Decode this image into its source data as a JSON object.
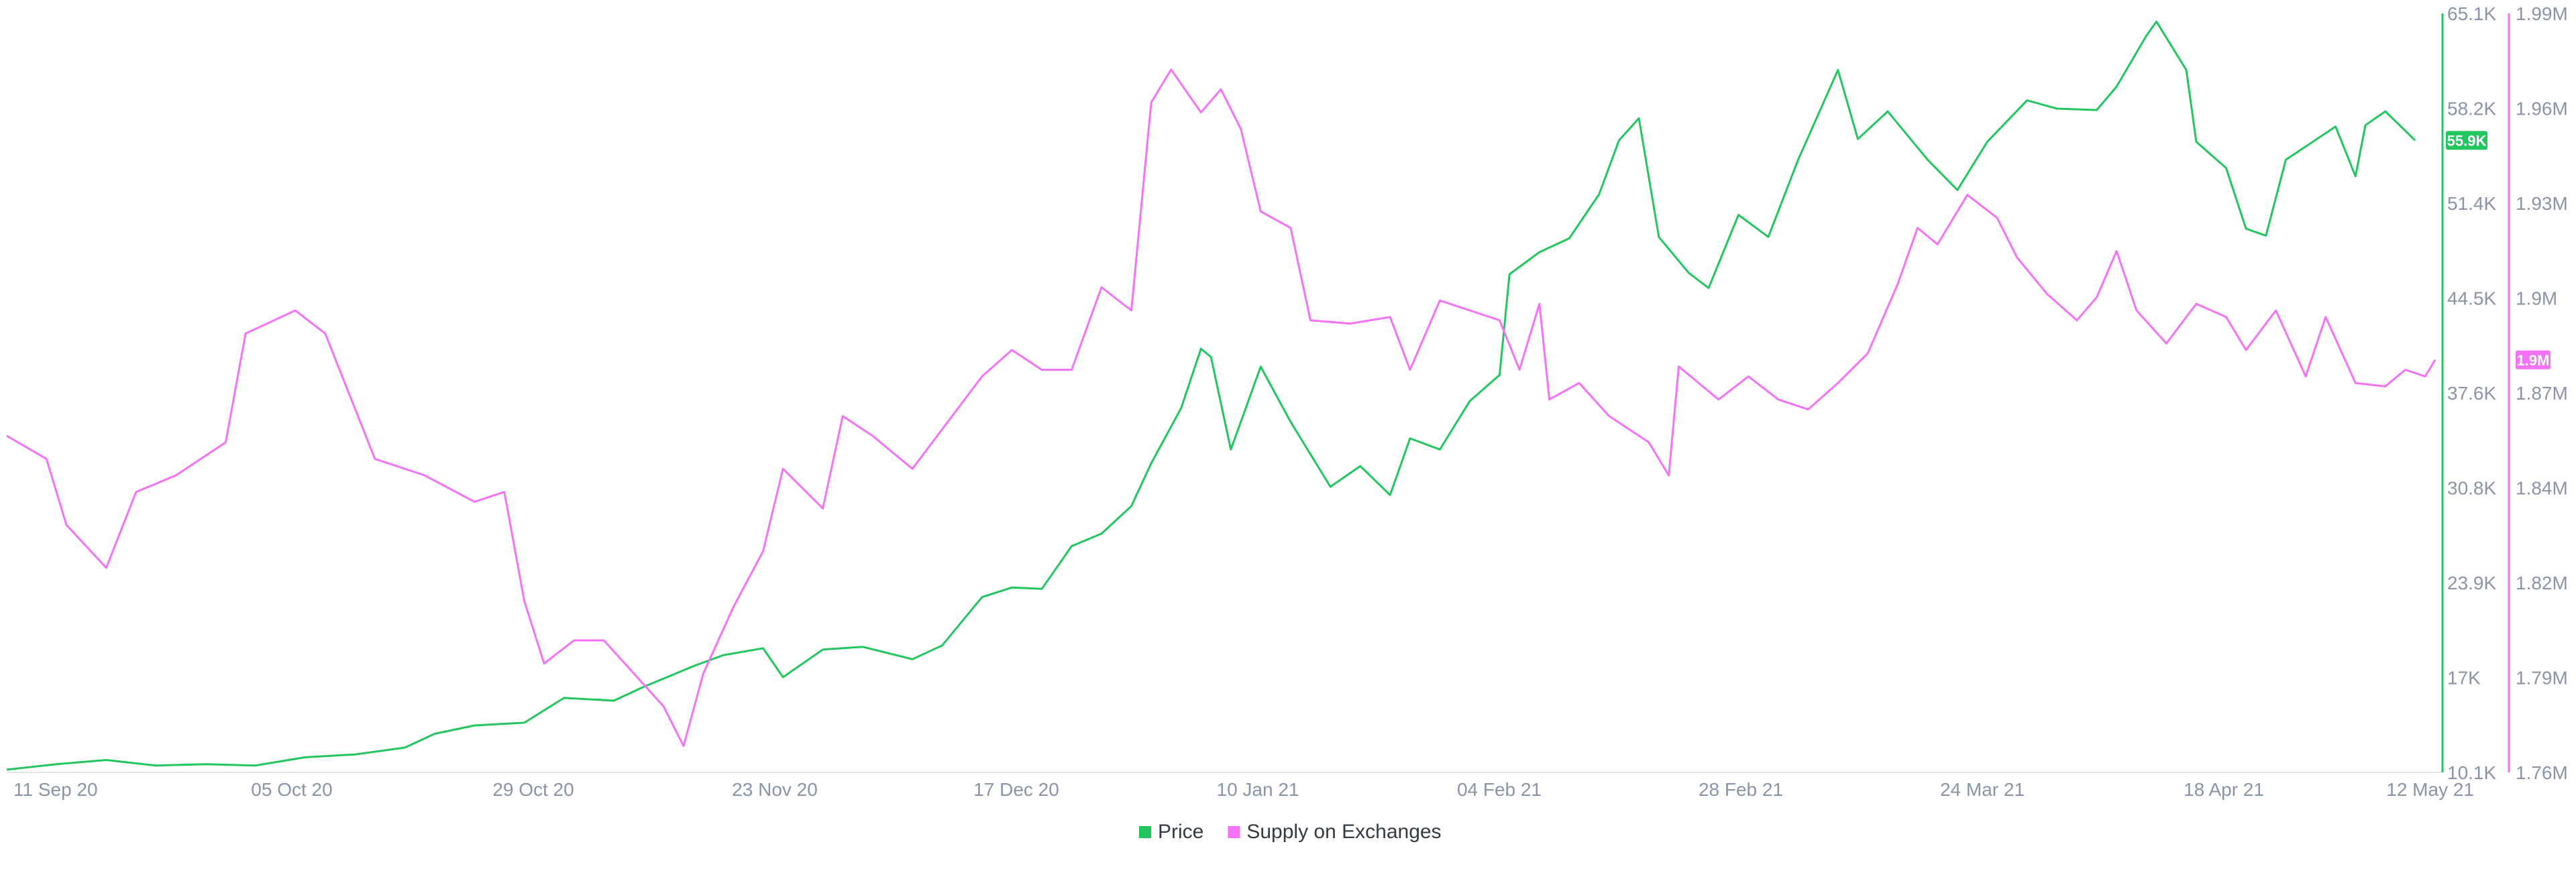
{
  "chart_data": {
    "type": "line",
    "x_dates": [
      "11 Sep 20",
      "05 Oct 20",
      "29 Oct 20",
      "23 Nov 20",
      "17 Dec 20",
      "10 Jan 21",
      "04 Feb 21",
      "28 Feb 21",
      "24 Mar 21",
      "18 Apr 21",
      "12 May 21"
    ],
    "x_start": "2020-09-10",
    "x_end": "2021-05-12",
    "y_left": {
      "ticks": [
        "10.1K",
        "17K",
        "23.9K",
        "30.8K",
        "37.6K",
        "44.5K",
        "51.4K",
        "58.2K",
        "65.1K"
      ],
      "range": [
        10100,
        65100
      ],
      "color": "#22c55e"
    },
    "y_right": {
      "ticks": [
        "1.76M",
        "1.79M",
        "1.82M",
        "1.84M",
        "1.87M",
        "1.9M",
        "1.93M",
        "1.96M",
        "1.99M"
      ],
      "range": [
        1760000,
        1990000
      ],
      "color": "#f472f6"
    },
    "series": [
      {
        "name": "Price",
        "axis": "left",
        "color": "#22c55e",
        "last_value_label": "55.9K",
        "points": [
          [
            "2020-09-10",
            10300
          ],
          [
            "2020-09-15",
            10700
          ],
          [
            "2020-09-20",
            11000
          ],
          [
            "2020-09-25",
            10600
          ],
          [
            "2020-09-30",
            10700
          ],
          [
            "2020-10-05",
            10600
          ],
          [
            "2020-10-10",
            11200
          ],
          [
            "2020-10-15",
            11400
          ],
          [
            "2020-10-20",
            11900
          ],
          [
            "2020-10-23",
            12900
          ],
          [
            "2020-10-27",
            13500
          ],
          [
            "2020-11-01",
            13700
          ],
          [
            "2020-11-05",
            15500
          ],
          [
            "2020-11-10",
            15300
          ],
          [
            "2020-11-13",
            16300
          ],
          [
            "2020-11-18",
            17800
          ],
          [
            "2020-11-21",
            18600
          ],
          [
            "2020-11-25",
            19100
          ],
          [
            "2020-11-27",
            17000
          ],
          [
            "2020-12-01",
            19000
          ],
          [
            "2020-12-05",
            19200
          ],
          [
            "2020-12-10",
            18300
          ],
          [
            "2020-12-13",
            19300
          ],
          [
            "2020-12-17",
            22800
          ],
          [
            "2020-12-20",
            23500
          ],
          [
            "2020-12-23",
            23400
          ],
          [
            "2020-12-26",
            26500
          ],
          [
            "2020-12-29",
            27400
          ],
          [
            "2021-01-01",
            29400
          ],
          [
            "2021-01-03",
            32500
          ],
          [
            "2021-01-06",
            36500
          ],
          [
            "2021-01-08",
            40800
          ],
          [
            "2021-01-09",
            40200
          ],
          [
            "2021-01-11",
            33500
          ],
          [
            "2021-01-14",
            39500
          ],
          [
            "2021-01-17",
            35500
          ],
          [
            "2021-01-21",
            30800
          ],
          [
            "2021-01-24",
            32300
          ],
          [
            "2021-01-27",
            30200
          ],
          [
            "2021-01-29",
            34300
          ],
          [
            "2021-02-01",
            33500
          ],
          [
            "2021-02-04",
            37000
          ],
          [
            "2021-02-07",
            38900
          ],
          [
            "2021-02-08",
            46200
          ],
          [
            "2021-02-11",
            47800
          ],
          [
            "2021-02-14",
            48800
          ],
          [
            "2021-02-17",
            52000
          ],
          [
            "2021-02-19",
            55900
          ],
          [
            "2021-02-21",
            57500
          ],
          [
            "2021-02-23",
            48900
          ],
          [
            "2021-02-26",
            46300
          ],
          [
            "2021-02-28",
            45200
          ],
          [
            "2021-03-03",
            50500
          ],
          [
            "2021-03-06",
            48900
          ],
          [
            "2021-03-09",
            54500
          ],
          [
            "2021-03-13",
            61000
          ],
          [
            "2021-03-15",
            56000
          ],
          [
            "2021-03-18",
            58000
          ],
          [
            "2021-03-22",
            54500
          ],
          [
            "2021-03-25",
            52300
          ],
          [
            "2021-03-28",
            55800
          ],
          [
            "2021-04-01",
            58800
          ],
          [
            "2021-04-04",
            58200
          ],
          [
            "2021-04-08",
            58100
          ],
          [
            "2021-04-10",
            59800
          ],
          [
            "2021-04-13",
            63500
          ],
          [
            "2021-04-14",
            64500
          ],
          [
            "2021-04-17",
            61000
          ],
          [
            "2021-04-18",
            55800
          ],
          [
            "2021-04-21",
            53900
          ],
          [
            "2021-04-23",
            49500
          ],
          [
            "2021-04-25",
            49000
          ],
          [
            "2021-04-27",
            54500
          ],
          [
            "2021-05-02",
            56900
          ],
          [
            "2021-05-04",
            53300
          ],
          [
            "2021-05-05",
            57000
          ],
          [
            "2021-05-07",
            58000
          ],
          [
            "2021-05-10",
            55900
          ]
        ]
      },
      {
        "name": "Supply on Exchanges",
        "axis": "right",
        "color": "#f472f6",
        "last_value_label": "1.9M",
        "points": [
          [
            "2020-09-10",
            1862000
          ],
          [
            "2020-09-14",
            1855000
          ],
          [
            "2020-09-16",
            1835000
          ],
          [
            "2020-09-20",
            1822000
          ],
          [
            "2020-09-23",
            1845000
          ],
          [
            "2020-09-27",
            1850000
          ],
          [
            "2020-10-02",
            1860000
          ],
          [
            "2020-10-04",
            1893000
          ],
          [
            "2020-10-09",
            1900000
          ],
          [
            "2020-10-12",
            1893000
          ],
          [
            "2020-10-17",
            1855000
          ],
          [
            "2020-10-22",
            1850000
          ],
          [
            "2020-10-27",
            1842000
          ],
          [
            "2020-10-30",
            1845000
          ],
          [
            "2020-11-01",
            1812000
          ],
          [
            "2020-11-03",
            1793000
          ],
          [
            "2020-11-06",
            1800000
          ],
          [
            "2020-11-09",
            1800000
          ],
          [
            "2020-11-12",
            1790000
          ],
          [
            "2020-11-15",
            1780000
          ],
          [
            "2020-11-17",
            1768000
          ],
          [
            "2020-11-19",
            1790000
          ],
          [
            "2020-11-22",
            1810000
          ],
          [
            "2020-11-25",
            1827000
          ],
          [
            "2020-11-27",
            1852000
          ],
          [
            "2020-12-01",
            1840000
          ],
          [
            "2020-12-03",
            1868000
          ],
          [
            "2020-12-06",
            1862000
          ],
          [
            "2020-12-10",
            1852000
          ],
          [
            "2020-12-14",
            1868000
          ],
          [
            "2020-12-17",
            1880000
          ],
          [
            "2020-12-20",
            1888000
          ],
          [
            "2020-12-23",
            1882000
          ],
          [
            "2020-12-26",
            1882000
          ],
          [
            "2020-12-29",
            1907000
          ],
          [
            "2021-01-01",
            1900000
          ],
          [
            "2021-01-03",
            1963000
          ],
          [
            "2021-01-05",
            1973000
          ],
          [
            "2021-01-08",
            1960000
          ],
          [
            "2021-01-10",
            1967000
          ],
          [
            "2021-01-12",
            1955000
          ],
          [
            "2021-01-14",
            1930000
          ],
          [
            "2021-01-17",
            1925000
          ],
          [
            "2021-01-19",
            1897000
          ],
          [
            "2021-01-23",
            1896000
          ],
          [
            "2021-01-27",
            1898000
          ],
          [
            "2021-01-29",
            1882000
          ],
          [
            "2021-02-01",
            1903000
          ],
          [
            "2021-02-04",
            1900000
          ],
          [
            "2021-02-07",
            1897000
          ],
          [
            "2021-02-09",
            1882000
          ],
          [
            "2021-02-11",
            1902000
          ],
          [
            "2021-02-12",
            1873000
          ],
          [
            "2021-02-15",
            1878000
          ],
          [
            "2021-02-18",
            1868000
          ],
          [
            "2021-02-22",
            1860000
          ],
          [
            "2021-02-24",
            1850000
          ],
          [
            "2021-02-25",
            1883000
          ],
          [
            "2021-03-01",
            1873000
          ],
          [
            "2021-03-04",
            1880000
          ],
          [
            "2021-03-07",
            1873000
          ],
          [
            "2021-03-10",
            1870000
          ],
          [
            "2021-03-13",
            1878000
          ],
          [
            "2021-03-16",
            1887000
          ],
          [
            "2021-03-19",
            1908000
          ],
          [
            "2021-03-21",
            1925000
          ],
          [
            "2021-03-23",
            1920000
          ],
          [
            "2021-03-26",
            1935000
          ],
          [
            "2021-03-29",
            1928000
          ],
          [
            "2021-03-31",
            1916000
          ],
          [
            "2021-04-03",
            1905000
          ],
          [
            "2021-04-06",
            1897000
          ],
          [
            "2021-04-08",
            1904000
          ],
          [
            "2021-04-10",
            1918000
          ],
          [
            "2021-04-12",
            1900000
          ],
          [
            "2021-04-15",
            1890000
          ],
          [
            "2021-04-18",
            1902000
          ],
          [
            "2021-04-21",
            1898000
          ],
          [
            "2021-04-23",
            1888000
          ],
          [
            "2021-04-26",
            1900000
          ],
          [
            "2021-04-29",
            1880000
          ],
          [
            "2021-05-01",
            1898000
          ],
          [
            "2021-05-04",
            1878000
          ],
          [
            "2021-05-07",
            1877000
          ],
          [
            "2021-05-09",
            1882000
          ],
          [
            "2021-05-11",
            1880000
          ],
          [
            "2021-05-12",
            1885000
          ]
        ]
      }
    ],
    "legend_position": "bottom-center",
    "grid": false
  }
}
